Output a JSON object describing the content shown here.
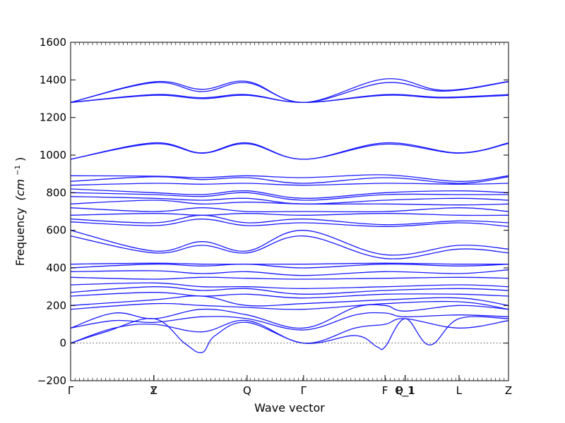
{
  "chart_data": {
    "type": "line",
    "title": "",
    "xlabel": "Wave vector",
    "ylabel": "Frequency",
    "ylabel_unit": "(cm",
    "ylabel_exp": "−1",
    "ylabel_close": ")",
    "ylim": [
      -200,
      1600
    ],
    "yticks": [
      -200,
      0,
      200,
      400,
      600,
      800,
      1000,
      1200,
      1400,
      1600
    ],
    "ytick_labels": [
      "−200",
      "0",
      "200",
      "400",
      "600",
      "800",
      "1000",
      "1200",
      "1400",
      "1600"
    ],
    "xlim": [
      0,
      1
    ],
    "kpoints": [
      {
        "label": "Γ",
        "x": 0.0
      },
      {
        "label": "Y",
        "x": 0.19
      },
      {
        "label": "Z",
        "x": 0.19
      },
      {
        "label": "Q",
        "x": 0.403
      },
      {
        "label": "Γ",
        "x": 0.532
      },
      {
        "label": "F",
        "x": 0.718
      },
      {
        "label": "P_1",
        "x": 0.764
      },
      {
        "label": "Q_1",
        "x": 0.764
      },
      {
        "label": "L",
        "x": 0.887
      },
      {
        "label": "Z",
        "x": 1.0
      }
    ],
    "zero_line": true,
    "series_color": "#1a1aff",
    "series": [
      {
        "x": [
          0,
          0.19,
          0.3,
          0.403,
          0.532,
          0.718,
          0.85,
          1.0
        ],
        "y": [
          1280,
          1390,
          1350,
          1392,
          1280,
          1405,
          1345,
          1392
        ]
      },
      {
        "x": [
          0,
          0.19,
          0.3,
          0.403,
          0.532,
          0.718,
          0.85,
          1.0
        ],
        "y": [
          1280,
          1385,
          1338,
          1385,
          1280,
          1385,
          1340,
          1390
        ]
      },
      {
        "x": [
          0,
          0.19,
          0.3,
          0.403,
          0.532,
          0.718,
          0.85,
          1.0
        ],
        "y": [
          1280,
          1322,
          1305,
          1322,
          1280,
          1322,
          1308,
          1322
        ]
      },
      {
        "x": [
          0,
          0.19,
          0.3,
          0.403,
          0.532,
          0.718,
          0.85,
          1.0
        ],
        "y": [
          1280,
          1318,
          1300,
          1318,
          1280,
          1318,
          1304,
          1318
        ]
      },
      {
        "x": [
          0,
          0.19,
          0.3,
          0.403,
          0.532,
          0.718,
          0.887,
          1.0
        ],
        "y": [
          978,
          1065,
          1012,
          1065,
          978,
          1065,
          1012,
          1065
        ]
      },
      {
        "x": [
          0,
          0.19,
          0.3,
          0.403,
          0.532,
          0.718,
          0.887,
          1.0
        ],
        "y": [
          978,
          1060,
          1010,
          1060,
          978,
          1058,
          1010,
          1062
        ]
      },
      {
        "x": [
          0,
          0.19,
          0.3,
          0.403,
          0.532,
          0.718,
          0.887,
          1.0
        ],
        "y": [
          890,
          888,
          880,
          890,
          880,
          895,
          860,
          890
        ]
      },
      {
        "x": [
          0,
          0.19,
          0.3,
          0.403,
          0.532,
          0.718,
          0.887,
          1.0
        ],
        "y": [
          860,
          885,
          870,
          880,
          850,
          880,
          850,
          885
        ]
      },
      {
        "x": [
          0,
          0.19,
          0.3,
          0.403,
          0.532,
          0.718,
          0.887,
          1.0
        ],
        "y": [
          840,
          850,
          845,
          850,
          840,
          850,
          845,
          850
        ]
      },
      {
        "x": [
          0,
          0.19,
          0.3,
          0.403,
          0.532,
          0.718,
          0.887,
          1.0
        ],
        "y": [
          820,
          800,
          790,
          810,
          770,
          800,
          810,
          800
        ]
      },
      {
        "x": [
          0,
          0.19,
          0.3,
          0.403,
          0.532,
          0.718,
          0.887,
          1.0
        ],
        "y": [
          800,
          790,
          780,
          800,
          760,
          790,
          790,
          790
        ]
      },
      {
        "x": [
          0,
          0.19,
          0.3,
          0.403,
          0.532,
          0.718,
          0.887,
          1.0
        ],
        "y": [
          780,
          770,
          760,
          770,
          740,
          760,
          770,
          760
        ]
      },
      {
        "x": [
          0,
          0.19,
          0.3,
          0.403,
          0.532,
          0.718,
          0.887,
          1.0
        ],
        "y": [
          740,
          760,
          740,
          750,
          740,
          740,
          735,
          740
        ]
      },
      {
        "x": [
          0,
          0.19,
          0.3,
          0.403,
          0.532,
          0.718,
          0.887,
          1.0
        ],
        "y": [
          720,
          700,
          720,
          700,
          700,
          700,
          720,
          700
        ]
      },
      {
        "x": [
          0,
          0.19,
          0.3,
          0.403,
          0.532,
          0.718,
          0.887,
          1.0
        ],
        "y": [
          680,
          690,
          680,
          690,
          680,
          690,
          680,
          680
        ]
      },
      {
        "x": [
          0,
          0.19,
          0.3,
          0.403,
          0.532,
          0.718,
          0.887,
          1.0
        ],
        "y": [
          660,
          640,
          680,
          640,
          660,
          630,
          650,
          640
        ]
      },
      {
        "x": [
          0,
          0.19,
          0.3,
          0.403,
          0.532,
          0.718,
          0.887,
          1.0
        ],
        "y": [
          645,
          625,
          660,
          625,
          640,
          620,
          640,
          620
        ]
      },
      {
        "x": [
          0,
          0.19,
          0.3,
          0.403,
          0.532,
          0.718,
          0.887,
          1.0
        ],
        "y": [
          600,
          490,
          540,
          490,
          600,
          470,
          520,
          500
        ]
      },
      {
        "x": [
          0,
          0.19,
          0.3,
          0.403,
          0.532,
          0.718,
          0.887,
          1.0
        ],
        "y": [
          570,
          480,
          520,
          480,
          570,
          450,
          500,
          480
        ]
      },
      {
        "x": [
          0,
          0.19,
          0.3,
          0.403,
          0.532,
          0.718,
          0.887,
          1.0
        ],
        "y": [
          420,
          425,
          420,
          420,
          420,
          425,
          420,
          420
        ]
      },
      {
        "x": [
          0,
          0.19,
          0.3,
          0.403,
          0.532,
          0.718,
          0.887,
          1.0
        ],
        "y": [
          400,
          420,
          410,
          420,
          400,
          420,
          410,
          420
        ]
      },
      {
        "x": [
          0,
          0.19,
          0.3,
          0.403,
          0.532,
          0.718,
          0.887,
          1.0
        ],
        "y": [
          380,
          385,
          370,
          380,
          360,
          380,
          370,
          390
        ]
      },
      {
        "x": [
          0,
          0.19,
          0.3,
          0.403,
          0.532,
          0.718,
          0.887,
          1.0
        ],
        "y": [
          350,
          340,
          350,
          345,
          340,
          345,
          350,
          345
        ]
      },
      {
        "x": [
          0,
          0.19,
          0.3,
          0.403,
          0.532,
          0.718,
          0.887,
          1.0
        ],
        "y": [
          310,
          320,
          300,
          300,
          290,
          300,
          310,
          300
        ]
      },
      {
        "x": [
          0,
          0.19,
          0.3,
          0.403,
          0.532,
          0.718,
          0.887,
          1.0
        ],
        "y": [
          270,
          300,
          280,
          290,
          260,
          280,
          290,
          280
        ]
      },
      {
        "x": [
          0,
          0.19,
          0.3,
          0.403,
          0.532,
          0.718,
          0.887,
          1.0
        ],
        "y": [
          250,
          270,
          250,
          260,
          240,
          260,
          260,
          250
        ]
      },
      {
        "x": [
          0,
          0.19,
          0.3,
          0.403,
          0.532,
          0.718,
          0.887,
          1.0
        ],
        "y": [
          200,
          230,
          250,
          200,
          210,
          230,
          240,
          200
        ]
      },
      {
        "x": [
          0,
          0.19,
          0.3,
          0.403,
          0.532,
          0.718,
          0.887,
          1.0
        ],
        "y": [
          180,
          210,
          200,
          190,
          180,
          210,
          220,
          180
        ]
      },
      {
        "x": [
          0,
          0.1,
          0.19,
          0.3,
          0.403,
          0.532,
          0.65,
          0.718,
          0.764,
          0.887,
          1.0
        ],
        "y": [
          80,
          160,
          130,
          180,
          150,
          80,
          190,
          200,
          170,
          200,
          180
        ]
      },
      {
        "x": [
          0,
          0.1,
          0.19,
          0.3,
          0.403,
          0.532,
          0.65,
          0.718,
          0.764,
          0.887,
          1.0
        ],
        "y": [
          80,
          120,
          110,
          140,
          130,
          70,
          150,
          160,
          140,
          150,
          140
        ]
      },
      {
        "x": [
          0,
          0.1,
          0.19,
          0.3,
          0.403,
          0.532,
          0.65,
          0.718,
          0.764,
          0.887,
          1.0
        ],
        "y": [
          0,
          80,
          100,
          60,
          120,
          0,
          80,
          100,
          130,
          80,
          120
        ]
      },
      {
        "x": [
          0,
          0.08,
          0.19,
          0.26,
          0.3,
          0.33,
          0.403,
          0.532,
          0.65,
          0.7,
          0.718,
          0.764,
          0.82,
          0.887,
          1.0
        ],
        "y": [
          0,
          60,
          130,
          0,
          -50,
          40,
          110,
          0,
          40,
          -20,
          -20,
          130,
          -10,
          130,
          130
        ]
      }
    ]
  }
}
